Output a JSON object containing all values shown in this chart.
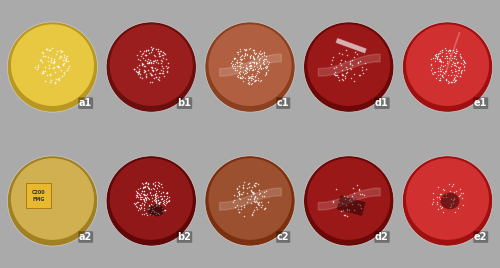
{
  "figsize": [
    5.0,
    2.68
  ],
  "dpi": 100,
  "grid_rows": 2,
  "grid_cols": 5,
  "labels": [
    [
      "a1",
      "b1",
      "c1",
      "d1",
      "e1"
    ],
    [
      "a2",
      "b2",
      "c2",
      "d2",
      "e2"
    ]
  ],
  "outer_bg": [
    [
      "#808080",
      "#808080",
      "#808080",
      "#808080",
      "#c8c890"
    ],
    [
      "#906040",
      "#808080",
      "#808080",
      "#808080",
      "#c09030"
    ]
  ],
  "label_color": "white",
  "label_fontsize": 7,
  "border_width": 0.5,
  "colony_color": "white",
  "colony_alpha": 0.75,
  "colonies": [
    [
      {
        "n": 80,
        "size": 1.5,
        "spread": 0.38
      },
      {
        "n": 130,
        "size": 1.2,
        "spread": 0.38
      },
      {
        "n": 220,
        "size": 1.0,
        "spread": 0.4
      },
      {
        "n": 55,
        "size": 1.2,
        "spread": 0.38
      },
      {
        "n": 160,
        "size": 1.0,
        "spread": 0.38
      }
    ],
    [
      {
        "n": 0,
        "size": 1.5,
        "spread": 0.38
      },
      {
        "n": 210,
        "size": 1.0,
        "spread": 0.38
      },
      {
        "n": 90,
        "size": 1.2,
        "spread": 0.38
      },
      {
        "n": 35,
        "size": 1.2,
        "spread": 0.35
      },
      {
        "n": 45,
        "size": 1.0,
        "spread": 0.35
      }
    ]
  ],
  "plate_edge_color": "#cccccc",
  "plate_inner_colors": [
    [
      {
        "center": "#e8c840",
        "edge": "#b89820"
      },
      {
        "center": "#9b1e1e",
        "edge": "#6b0e0e"
      },
      {
        "center": "#b06040",
        "edge": "#8b4020"
      },
      {
        "center": "#9b1818",
        "edge": "#6b0808"
      },
      {
        "center": "#d03030",
        "edge": "#a01010"
      }
    ],
    [
      {
        "center": "#d0b050",
        "edge": "#a08020"
      },
      {
        "center": "#901818",
        "edge": "#600808"
      },
      {
        "center": "#9b5030",
        "edge": "#7b3010"
      },
      {
        "center": "#9b1818",
        "edge": "#6b0808"
      },
      {
        "center": "#d03030",
        "edge": "#a01010"
      }
    ]
  ]
}
